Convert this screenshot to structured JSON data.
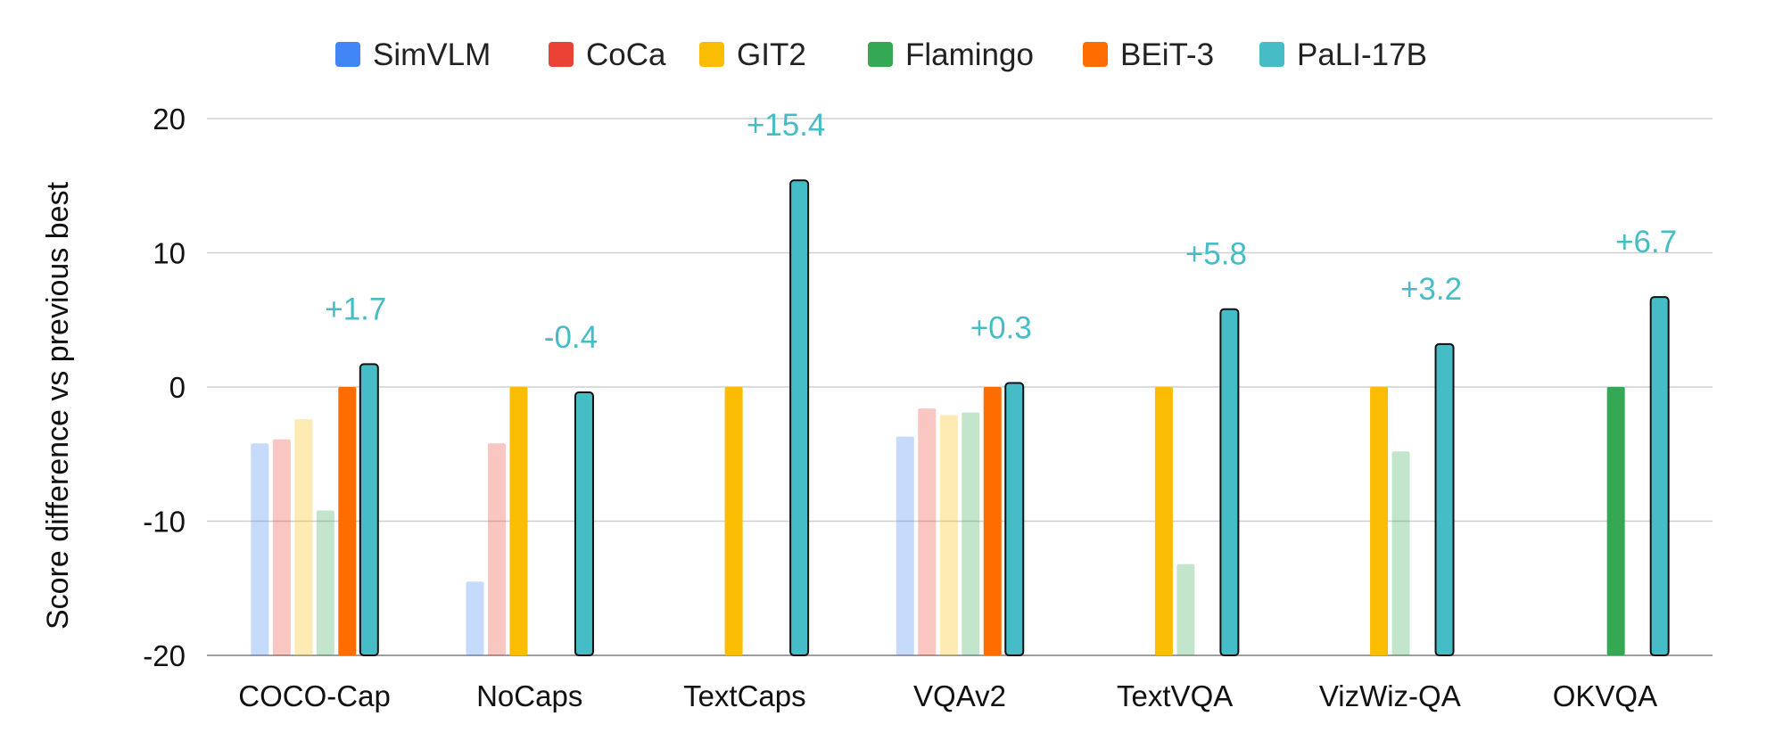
{
  "chart_data": {
    "type": "bar",
    "title": "",
    "xlabel": "",
    "ylabel": "Score difference vs previous best",
    "ylim": [
      -20,
      20
    ],
    "yticks": [
      -20,
      -10,
      0,
      10,
      20
    ],
    "ytick_labels": [
      "-20",
      "-10",
      "0",
      "10",
      "20"
    ],
    "grid": true,
    "legend_position": "top",
    "categories": [
      "COCO-Cap",
      "NoCaps",
      "TextCaps",
      "VQAv2",
      "TextVQA",
      "VizWiz-QA",
      "OKVQA"
    ],
    "series": [
      {
        "name": "SimVLM",
        "color": "#4285F4",
        "values": [
          -4.2,
          -14.5,
          null,
          -3.7,
          null,
          null,
          null
        ],
        "faded": [
          true,
          true,
          true,
          true,
          true,
          true,
          true
        ]
      },
      {
        "name": "CoCa",
        "color": "#EA4335",
        "values": [
          -3.9,
          -4.2,
          null,
          -1.6,
          null,
          null,
          null
        ],
        "faded": [
          true,
          true,
          true,
          true,
          true,
          true,
          true
        ]
      },
      {
        "name": "GIT2",
        "color": "#FBBC04",
        "values": [
          -2.4,
          0,
          0,
          -2.1,
          0,
          0,
          null
        ],
        "faded": [
          true,
          false,
          false,
          true,
          false,
          false,
          true
        ]
      },
      {
        "name": "Flamingo",
        "color": "#34A853",
        "values": [
          -9.2,
          null,
          null,
          -1.9,
          -13.2,
          -4.8,
          0
        ],
        "faded": [
          true,
          true,
          true,
          true,
          true,
          true,
          false
        ]
      },
      {
        "name": "BEiT-3",
        "color": "#FF6D01",
        "values": [
          0,
          null,
          null,
          0,
          null,
          null,
          null
        ],
        "faded": [
          false,
          false,
          false,
          false,
          false,
          false,
          false
        ]
      },
      {
        "name": "PaLI-17B",
        "color": "#46BDC6",
        "values": [
          1.7,
          -0.4,
          15.4,
          0.3,
          5.8,
          3.2,
          6.7
        ],
        "faded": [
          false,
          false,
          false,
          false,
          false,
          false,
          false
        ]
      }
    ],
    "annotations": [
      "+1.7",
      "-0.4",
      "+15.4",
      "+0.3",
      "+5.8",
      "+3.2",
      "+6.7"
    ],
    "annotation_color": "#46BDC6"
  }
}
